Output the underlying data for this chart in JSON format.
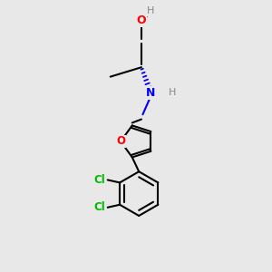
{
  "bg_color": "#e8e8e8",
  "bond_color": "#000000",
  "bond_width": 1.5,
  "atom_colors": {
    "O": "#ff0000",
    "N": "#0000ff",
    "Cl": "#00bb00",
    "H_gray": "#888888",
    "C": "#000000"
  },
  "figsize": [
    3.0,
    3.0
  ],
  "dpi": 100
}
